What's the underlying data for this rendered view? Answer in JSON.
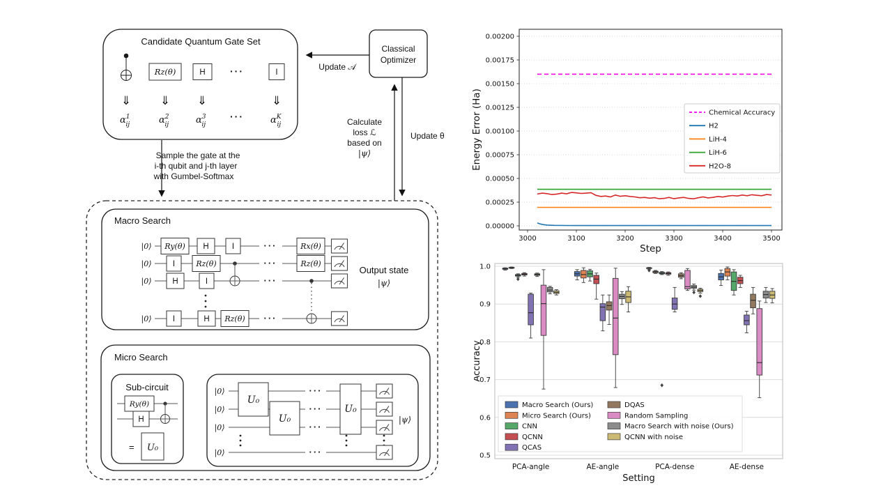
{
  "diagram": {
    "gate_set": {
      "title": "Candidate Quantum Gate Set",
      "rz": "Rz(θ)",
      "h": "H",
      "dots": "···",
      "i": "I",
      "arrow_glyph": "⇓",
      "alphas": [
        {
          "base": "α",
          "sup": "1",
          "sub": "ij"
        },
        {
          "base": "α",
          "sup": "2",
          "sub": "ij"
        },
        {
          "base": "α",
          "sup": "3",
          "sub": "ij"
        },
        {
          "base": "α",
          "sup": "K",
          "sub": "ij"
        }
      ],
      "alpha_dots": "···"
    },
    "optimizer": {
      "line1": "Classical",
      "line2": "Optimizer"
    },
    "labels": {
      "update_a": "Update 𝒜",
      "update_theta": "Update θ",
      "loss": [
        "Calculate",
        "loss ℒ",
        "based on",
        "|ψ⟩"
      ],
      "sample": [
        "Sample the gate at the",
        "i-th qubit and j-th layer",
        "with Gumbel-Softmax"
      ]
    },
    "macro": {
      "title": "Macro Search",
      "ket0": "|0⟩",
      "dots": "···",
      "gates": {
        "r1": [
          "Ry(θ)",
          "H",
          "I",
          "Rx(θ)"
        ],
        "r2": [
          "I",
          "Rz(θ)",
          "Rz(θ)"
        ],
        "r3": [
          "H",
          "I"
        ],
        "r4": [
          "I",
          "H",
          "Rz(θ)"
        ]
      },
      "output1": "Output state",
      "output2": "|ψ⟩"
    },
    "micro": {
      "title": "Micro Search",
      "sub_title": "Sub-circuit",
      "ry": "Ry(θ)",
      "h": "H",
      "eq": "=",
      "u0": "U₀",
      "ket0": "|0⟩",
      "dots": "···",
      "psi": "|ψ⟩"
    }
  },
  "chart_data": [
    {
      "id": "energy-error-line",
      "type": "line",
      "title": "",
      "xlabel": "Step",
      "ylabel": "Energy Error (Ha)",
      "xlim": [
        2983,
        3521
      ],
      "ylim": [
        0,
        0.002
      ],
      "xticks": [
        3000,
        3100,
        3200,
        3300,
        3400,
        3500
      ],
      "yticks": [
        0.0,
        0.00025,
        0.0005,
        0.00075,
        0.001,
        0.00125,
        0.0015,
        0.00175,
        0.002
      ],
      "grid": "horizontal-dotted",
      "legend_position": "center-right",
      "series": [
        {
          "name": "Chemical Accuracy",
          "color": "#ee00ee",
          "style": "dashed",
          "x": [
            3020,
            3500
          ],
          "y": [
            0.0016,
            0.0016
          ]
        },
        {
          "name": "H2",
          "color": "#1f77b4",
          "style": "solid",
          "x": [
            3020,
            3026,
            3032,
            3040,
            3055,
            3080,
            3120,
            3200,
            3350,
            3500
          ],
          "y": [
            3e-05,
            2e-05,
            1.3e-05,
            8e-06,
            5e-06,
            4e-06,
            3e-06,
            3e-06,
            3e-06,
            3e-06
          ]
        },
        {
          "name": "LiH-4",
          "color": "#ff7f0e",
          "style": "solid",
          "x": [
            3020,
            3500
          ],
          "y": [
            0.000195,
            0.000195
          ]
        },
        {
          "name": "LiH-6",
          "color": "#2ca02c",
          "style": "solid",
          "x": [
            3020,
            3500
          ],
          "y": [
            0.000385,
            0.000385
          ]
        },
        {
          "name": "H2O-8",
          "color": "#d62728",
          "style": "solid",
          "x_start": 3020,
          "x_step": 10,
          "y": [
            0.000335,
            0.000345,
            0.00034,
            0.00033,
            0.000335,
            0.000345,
            0.000338,
            0.000352,
            0.000348,
            0.000342,
            0.000345,
            0.00035,
            0.000322,
            0.00031,
            0.000315,
            0.000305,
            0.000325,
            0.000312,
            0.000318,
            0.00031,
            0.000305,
            0.000296,
            0.0003,
            0.000292,
            0.000297,
            0.000286,
            0.00029,
            0.0003,
            0.000286,
            0.000295,
            0.0003,
            0.00029,
            0.000285,
            0.000296,
            0.000305,
            0.000295,
            0.0003,
            0.00031,
            0.000304,
            0.000314,
            0.00032,
            0.000315,
            0.000325,
            0.000318,
            0.000328,
            0.000322,
            0.000318,
            0.00033,
            0.000325
          ]
        }
      ]
    },
    {
      "id": "accuracy-box",
      "type": "box",
      "title": "",
      "xlabel": "Setting",
      "ylabel": "Accuracy",
      "categories": [
        "PCA-angle",
        "AE-angle",
        "PCA-dense",
        "AE-dense"
      ],
      "ylim": [
        0.5,
        1.0
      ],
      "yticks": [
        0.5,
        0.6,
        0.7,
        0.8,
        0.9,
        1.0
      ],
      "grid": "horizontal-solid",
      "legend_position": "lower-left",
      "legend_columns": [
        5,
        4
      ],
      "methods": [
        {
          "name": "Macro Search (Ours)",
          "color": "#4c72b0"
        },
        {
          "name": "Micro Search (Ours)",
          "color": "#dd8452"
        },
        {
          "name": "CNN",
          "color": "#55a868"
        },
        {
          "name": "QCNN",
          "color": "#c44e52"
        },
        {
          "name": "QCAS",
          "color": "#8172b3"
        },
        {
          "name": "DQAS",
          "color": "#937860"
        },
        {
          "name": "Random Sampling",
          "color": "#da8bc3"
        },
        {
          "name": "Macro Search with noise (Ours)",
          "color": "#8c8c8c"
        },
        {
          "name": "QCNN with noise",
          "color": "#ccb974"
        }
      ],
      "boxes": [
        [
          [
            0.99,
            0.992,
            0.994,
            0.995,
            0.996
          ],
          [
            0.994,
            0.995,
            0.996,
            0.997,
            0.998
          ],
          [
            0.971,
            0.974,
            0.976,
            0.978,
            0.98,
            [
              0.966
            ]
          ],
          [
            0.974,
            0.977,
            0.979,
            0.981,
            0.983
          ],
          [
            0.81,
            0.845,
            0.877,
            0.926,
            0.929
          ],
          [
            0.973,
            0.976,
            0.978,
            0.98,
            0.982
          ],
          [
            0.675,
            0.817,
            0.901,
            0.95,
            0.991
          ],
          [
            0.927,
            0.932,
            0.937,
            0.944,
            0.947
          ],
          [
            0.924,
            0.928,
            0.931,
            0.935,
            0.938
          ]
        ],
        [
          [
            0.964,
            0.974,
            0.98,
            0.986,
            0.991
          ],
          [
            0.957,
            0.969,
            0.978,
            0.989,
            0.996
          ],
          [
            0.961,
            0.972,
            0.98,
            0.988,
            0.992
          ],
          [
            0.913,
            0.954,
            0.966,
            0.976,
            0.982
          ],
          [
            0.829,
            0.856,
            0.892,
            0.901,
            0.924
          ],
          [
            0.846,
            0.884,
            0.896,
            0.906,
            0.924
          ],
          [
            0.679,
            0.766,
            0.863,
            0.968,
            0.995
          ],
          [
            0.899,
            0.914,
            0.92,
            0.926,
            0.933
          ],
          [
            0.879,
            0.904,
            0.919,
            0.934,
            0.946
          ]
        ],
        [
          [
            0.992,
            0.994,
            0.995,
            0.996,
            0.997,
            [
              0.989
            ]
          ],
          [
            0.981,
            0.983,
            0.985,
            0.987,
            0.989
          ],
          [
            0.978,
            0.98,
            0.982,
            0.984,
            0.986,
            [
              0.685
            ]
          ],
          [
            0.976,
            0.979,
            0.981,
            0.983,
            0.985
          ],
          [
            0.879,
            0.886,
            0.9,
            0.916,
            0.944
          ],
          [
            0.967,
            0.971,
            0.975,
            0.98,
            0.983
          ],
          [
            0.936,
            0.94,
            0.946,
            0.989,
            0.994
          ],
          [
            0.937,
            0.942,
            0.945,
            0.949,
            0.953,
            [
              0.931
            ]
          ],
          [
            0.929,
            0.933,
            0.936,
            0.939,
            0.942,
            [
              0.921
            ]
          ]
        ],
        [
          [
            0.949,
            0.964,
            0.972,
            0.981,
            0.99
          ],
          [
            0.964,
            0.974,
            0.985,
            0.994,
            0.998
          ],
          [
            0.924,
            0.936,
            0.96,
            0.985,
            0.991
          ],
          [
            0.944,
            0.954,
            0.962,
            0.971,
            0.976
          ],
          [
            0.824,
            0.845,
            0.856,
            0.871,
            0.881
          ],
          [
            0.874,
            0.89,
            0.91,
            0.926,
            0.944
          ],
          [
            0.652,
            0.712,
            0.745,
            0.888,
            0.908
          ],
          [
            0.904,
            0.916,
            0.925,
            0.934,
            0.944
          ],
          [
            0.903,
            0.915,
            0.924,
            0.934,
            0.941
          ]
        ]
      ]
    }
  ]
}
